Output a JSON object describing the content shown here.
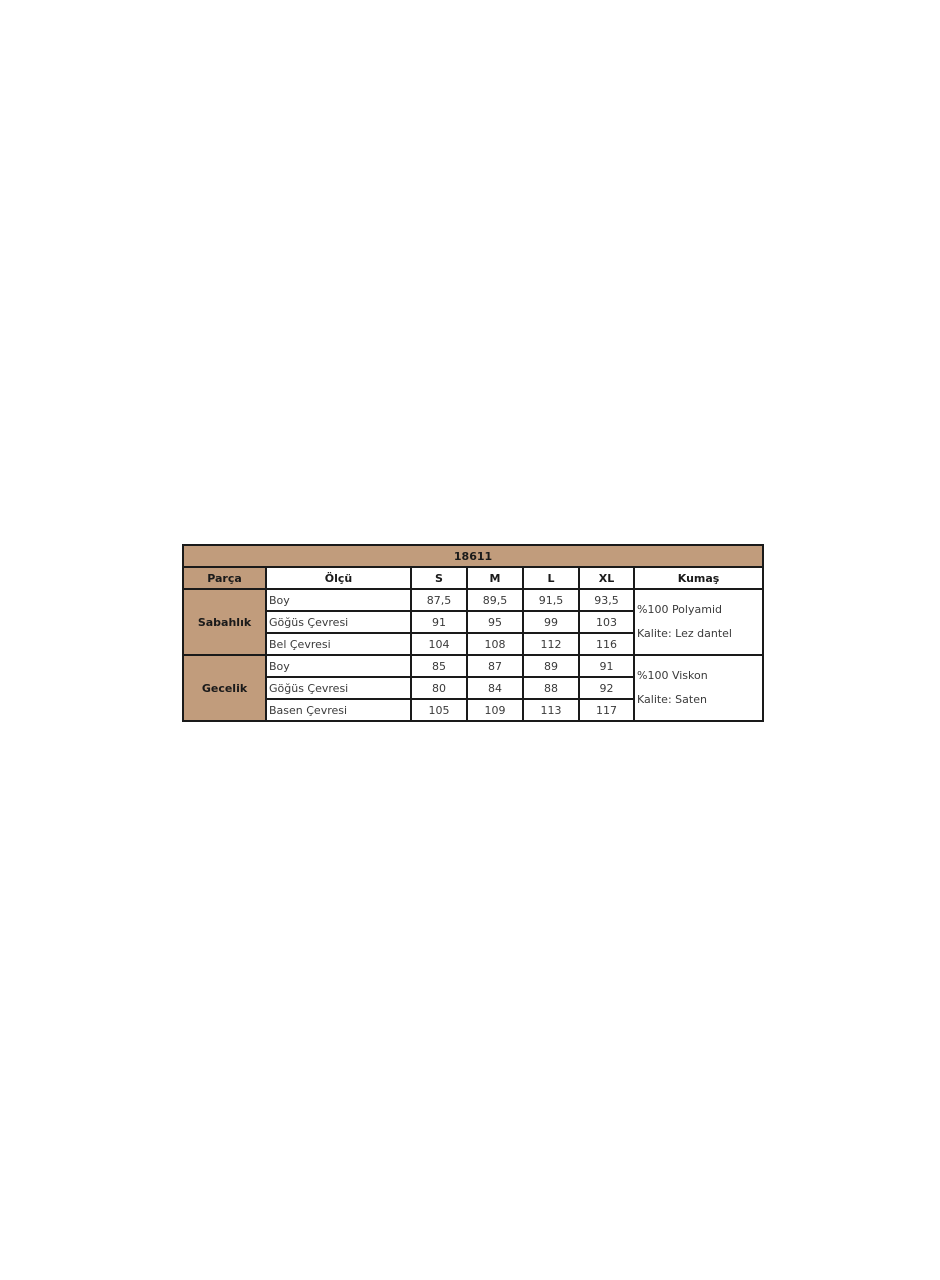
{
  "table": {
    "title": "18611",
    "headers": [
      "Parça",
      "Ölçü",
      "S",
      "M",
      "L",
      "XL",
      "Kumaş"
    ],
    "groups": [
      {
        "part": "Sabahlık",
        "fabric": [
          "%100 Polyamid",
          "Kalite: Lez dantel"
        ],
        "rows": [
          {
            "measure": "Boy",
            "values": [
              "87,5",
              "89,5",
              "91,5",
              "93,5"
            ]
          },
          {
            "measure": "Göğüs Çevresi",
            "values": [
              "91",
              "95",
              "99",
              "103"
            ]
          },
          {
            "measure": "Bel Çevresi",
            "values": [
              "104",
              "108",
              "112",
              "116"
            ]
          }
        ]
      },
      {
        "part": "Gecelik",
        "fabric": [
          "%100 Viskon",
          "Kalite: Saten"
        ],
        "rows": [
          {
            "measure": "Boy",
            "values": [
              "85",
              "87",
              "89",
              "91"
            ]
          },
          {
            "measure": "Göğüs Çevresi",
            "values": [
              "80",
              "84",
              "88",
              "92"
            ]
          },
          {
            "measure": "Basen Çevresi",
            "values": [
              "105",
              "109",
              "113",
              "117"
            ]
          }
        ]
      }
    ],
    "header_color": "#c19c7c"
  }
}
